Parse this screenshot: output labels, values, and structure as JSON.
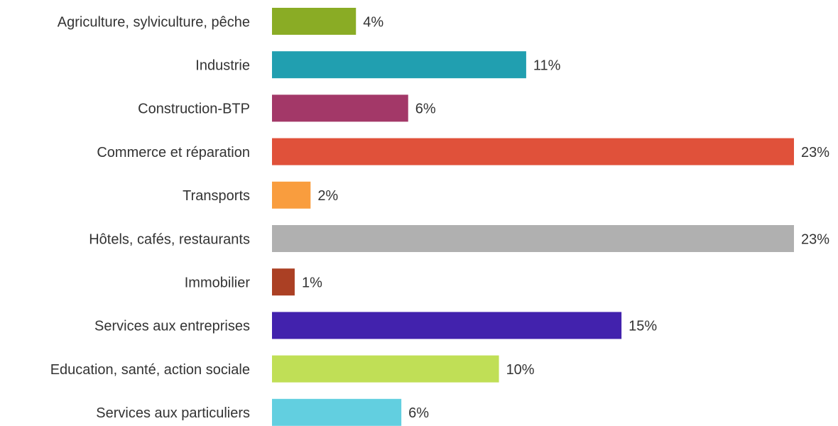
{
  "chart_data": {
    "type": "hbar",
    "categories": [
      "Agriculture, sylviculture, pêche",
      "Industrie",
      "Construction-BTP",
      "Commerce et réparation",
      "Transports",
      "Hôtels, cafés, restaurants",
      "Immobilier",
      "Services aux entreprises",
      "Education, santé, action sociale",
      "Services aux particuliers"
    ],
    "values": [
      3.7,
      11.2,
      6.0,
      23,
      1.7,
      23,
      1.0,
      15.4,
      10.0,
      5.7
    ],
    "value_labels": [
      "4%",
      "11%",
      "6%",
      "23%",
      "2%",
      "23%",
      "1%",
      "15%",
      "10%",
      "6%"
    ],
    "colors": [
      "#8aac25",
      "#219fb0",
      "#a33868",
      "#e0513a",
      "#f99d3e",
      "#b0b0b0",
      "#ab4024",
      "#4222ad",
      "#c0df56",
      "#62cfe0"
    ],
    "xlim": [
      0,
      23
    ]
  }
}
